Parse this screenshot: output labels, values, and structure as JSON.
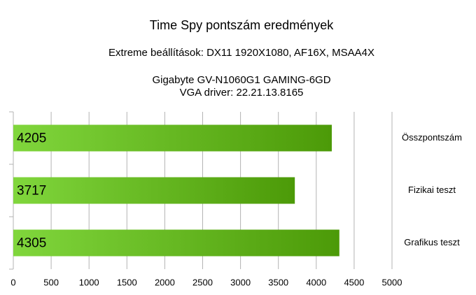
{
  "chart_data": {
    "type": "bar",
    "orientation": "horizontal",
    "title": "Time Spy pontszám eredmények",
    "subtitle": [
      "Extreme beállítások: DX11 1920X1080, AF16X, MSAA4X",
      "Gigabyte GV-N1060G1 GAMING-6GD",
      "VGA driver: 22.21.13.8165"
    ],
    "categories": [
      "Összpontszám",
      "Fizikai teszt",
      "Grafikus teszt"
    ],
    "values": [
      4205,
      3717,
      4305
    ],
    "gradient": [
      "#80d63c",
      "#4c9a08"
    ],
    "xlim": [
      0,
      5000
    ],
    "xticks": [
      0,
      500,
      1000,
      1500,
      2000,
      2500,
      3000,
      3500,
      4000,
      4500,
      5000
    ],
    "grid": true
  }
}
